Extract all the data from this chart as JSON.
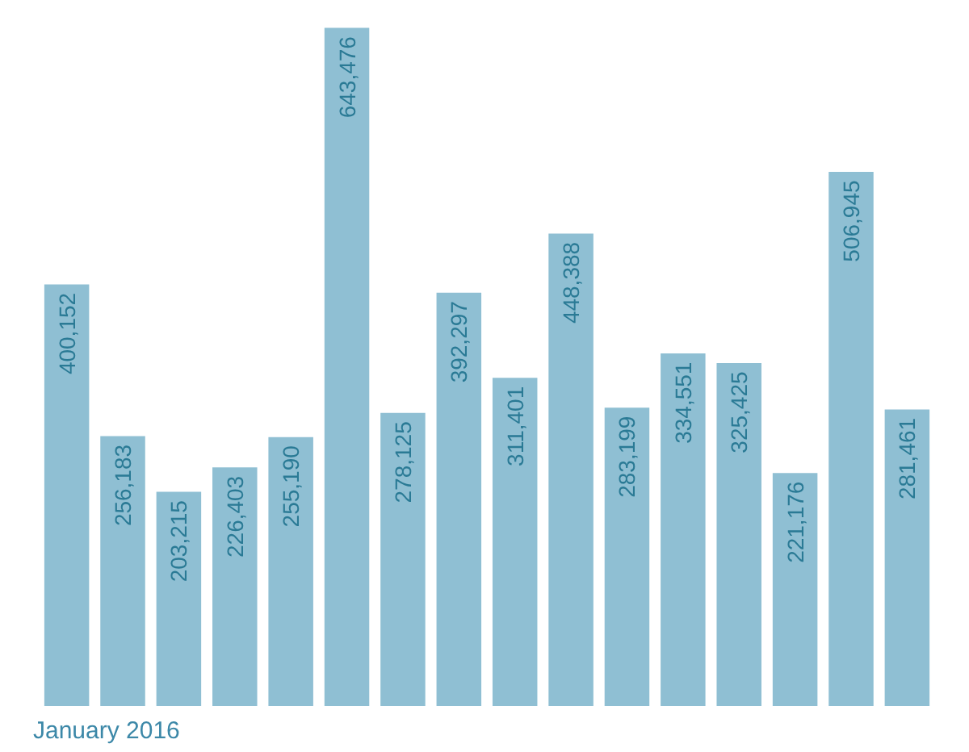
{
  "chart_data": {
    "type": "bar",
    "categories": [
      null,
      null,
      null,
      null,
      null,
      null,
      null,
      null,
      null,
      null,
      null,
      null,
      null,
      null,
      null,
      null
    ],
    "values": [
      400152,
      256183,
      203215,
      226403,
      255190,
      643476,
      278125,
      392297,
      311401,
      448388,
      283199,
      334551,
      325425,
      221176,
      506945,
      281461
    ],
    "value_labels": [
      "400,152",
      "256,183",
      "203,215",
      "226,403",
      "255,190",
      "643,476",
      "278,125",
      "392,297",
      "311,401",
      "448,388",
      "283,199",
      "334,551",
      "325,425",
      "221,176",
      "506,945",
      "281,461"
    ],
    "color": "#8fbfd3",
    "annotations": [
      "January 2016"
    ]
  }
}
